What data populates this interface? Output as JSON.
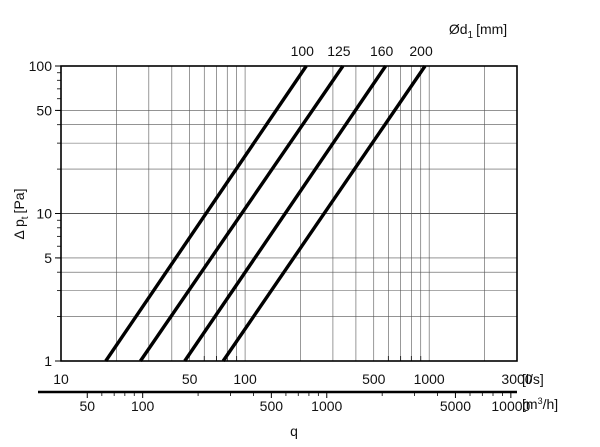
{
  "chart_data": {
    "type": "line",
    "x_scale": "log",
    "y_scale": "log",
    "grid": true,
    "legend_title": "Ød1 [mm]",
    "legend_title_main": "Ød",
    "legend_title_sub": "1",
    "legend_title_unit": "[mm]",
    "ylabel": "Δ pt [Pa]",
    "ylabel_main": "Δ p",
    "ylabel_sub": "t",
    "ylabel_unit": "[Pa]",
    "xlabel": "q",
    "x_unit_ls": "[l/s]",
    "x_unit_m3h": "[m3/h]",
    "x_unit_m3h_main": "[m",
    "x_unit_m3h_sup": "3",
    "x_unit_m3h_end": "/h]",
    "xlim_ls": [
      10,
      3000
    ],
    "ylim": [
      1,
      100
    ],
    "x_ticks_ls": [
      "10",
      "50",
      "100",
      "500",
      "1000",
      "3000"
    ],
    "x_ticks_m3h": [
      "50",
      "100",
      "500",
      "1000",
      "5000",
      "10000"
    ],
    "y_ticks": [
      "1",
      "5",
      "10",
      "50",
      "100"
    ],
    "series": [
      {
        "name": "100",
        "x_ls": [
          17.5,
          215
        ],
        "y": [
          1,
          100
        ]
      },
      {
        "name": "125",
        "x_ls": [
          27,
          340
        ],
        "y": [
          1,
          100
        ]
      },
      {
        "name": "160",
        "x_ls": [
          47,
          580
        ],
        "y": [
          1,
          100
        ]
      },
      {
        "name": "200",
        "x_ls": [
          76,
          950
        ],
        "y": [
          1,
          100
        ]
      }
    ]
  }
}
